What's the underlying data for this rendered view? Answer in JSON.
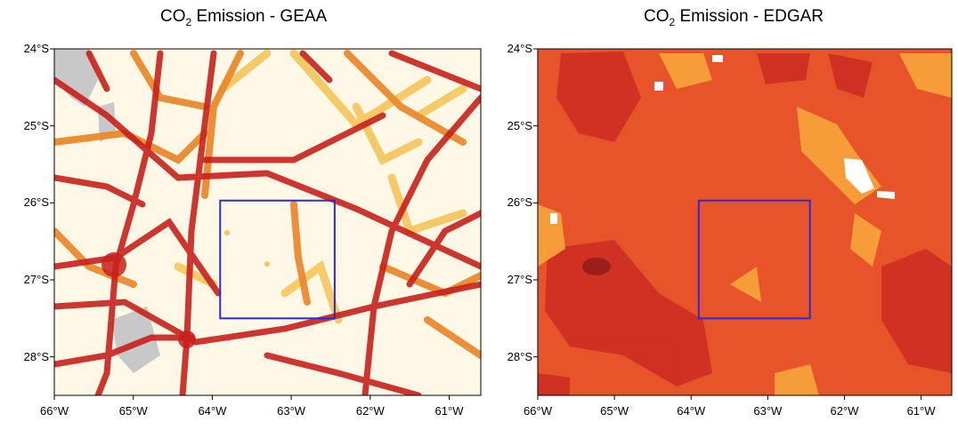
{
  "panels": [
    {
      "title_prefix": "CO",
      "title_subscript": "2",
      "title_suffix": " Emission - GEAA",
      "colors": {
        "background": "#fff8e6",
        "road_light": "#f6c55a",
        "road_mid": "#ea8a2e",
        "road_dark": "#c8201c",
        "water": "#c8c8c8"
      }
    },
    {
      "title_prefix": "CO",
      "title_subscript": "2",
      "title_suffix": " Emission - EDGAR",
      "colors": {
        "background": "#e8542a",
        "light": "#f7a03a",
        "dark": "#cf2f22",
        "white": "#ffffff"
      }
    }
  ],
  "axes": {
    "lat_labels": [
      "24°S",
      "25°S",
      "26°S",
      "27°S",
      "28°S"
    ],
    "lon_labels": [
      "66°W",
      "65°W",
      "64°W",
      "63°W",
      "62°W",
      "61°W"
    ],
    "lat_values": [
      -24,
      -25,
      -26,
      -27,
      -28
    ],
    "lon_values": [
      -66,
      -65,
      -64,
      -63,
      -62,
      -61
    ],
    "lat_range": [
      -28.5,
      -24
    ],
    "lon_range": [
      -66,
      -60.6
    ]
  },
  "box": {
    "lon": [
      -63.9,
      -62.45
    ],
    "lat": [
      -27.5,
      -25.97
    ],
    "color": "#2b2bd6"
  }
}
